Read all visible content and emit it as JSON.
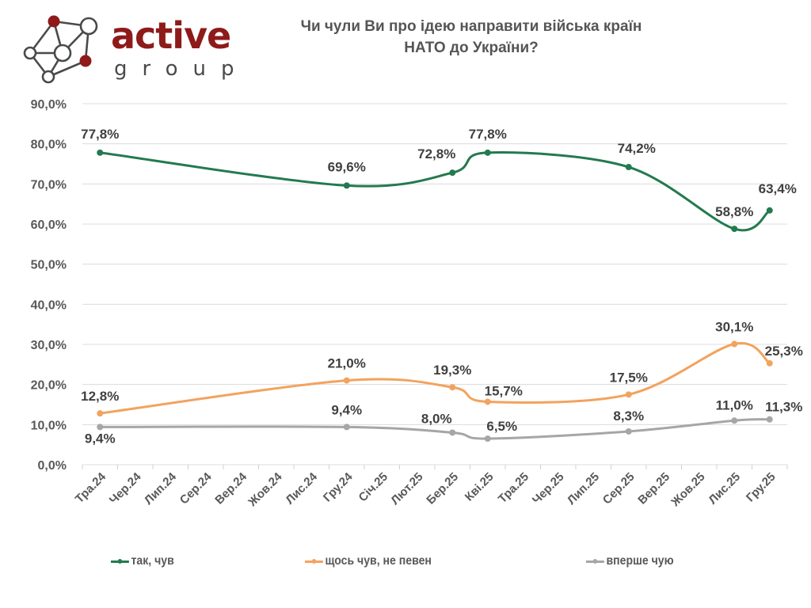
{
  "logo": {
    "word": "active",
    "sub": "group",
    "colors": {
      "primary": "#8e1a1a",
      "secondary": "#4a4a4a"
    }
  },
  "chart_data": {
    "type": "line",
    "title": "Чи чули Ви про ідею направити війська країн НАТО до України?",
    "title_lines": [
      "Чи чули Ви про ідею направити війська країн",
      "НАТО до України?"
    ],
    "xlabel": "",
    "ylabel": "",
    "categories": [
      "Тра.24",
      "Чер.24",
      "Лип.24",
      "Сер.24",
      "Вер.24",
      "Жов.24",
      "Лис.24",
      "Гру.24",
      "Січ.25",
      "Лют.25",
      "Бер.25",
      "Кві.25",
      "Тра.25",
      "Чер.25",
      "Лип.25",
      "Сер.25",
      "Вер.25",
      "Жов.25",
      "Лис.25",
      "Гру.25"
    ],
    "ylim": [
      0,
      90
    ],
    "yticks": [
      0,
      10,
      20,
      30,
      40,
      50,
      60,
      70,
      80,
      90
    ],
    "ytick_labels": [
      "0,0%",
      "10,0%",
      "20,0%",
      "30,0%",
      "40,0%",
      "50,0%",
      "60,0%",
      "70,0%",
      "80,0%",
      "90,0%"
    ],
    "grid": true,
    "smooth": true,
    "legend_position": "bottom",
    "series": [
      {
        "name": "так, чув",
        "color": "#237a4f",
        "points": [
          {
            "x": "Тра.24",
            "y": 77.8,
            "label": "77,8%"
          },
          {
            "x": "Гру.24",
            "y": 69.6,
            "label": "69,6%"
          },
          {
            "x": "Бер.25",
            "y": 72.8,
            "label": "72,8%"
          },
          {
            "x": "Кві.25",
            "y": 77.8,
            "label": "77,8%"
          },
          {
            "x": "Сер.25",
            "y": 74.2,
            "label": "74,2%"
          },
          {
            "x": "Лис.25",
            "y": 58.8,
            "label": "58,8%"
          },
          {
            "x": "Гру.25",
            "y": 63.4,
            "label": "63,4%"
          }
        ]
      },
      {
        "name": "щось чув, не певен",
        "color": "#f2a35e",
        "points": [
          {
            "x": "Тра.24",
            "y": 12.8,
            "label": "12,8%"
          },
          {
            "x": "Гру.24",
            "y": 21.0,
            "label": "21,0%"
          },
          {
            "x": "Бер.25",
            "y": 19.3,
            "label": "19,3%"
          },
          {
            "x": "Кві.25",
            "y": 15.7,
            "label": "15,7%"
          },
          {
            "x": "Сер.25",
            "y": 17.5,
            "label": "17,5%"
          },
          {
            "x": "Лис.25",
            "y": 30.1,
            "label": "30,1%"
          },
          {
            "x": "Гру.25",
            "y": 25.3,
            "label": "25,3%"
          }
        ]
      },
      {
        "name": "вперше чую",
        "color": "#a6a6a6",
        "points": [
          {
            "x": "Тра.24",
            "y": 9.4,
            "label": "9,4%"
          },
          {
            "x": "Гру.24",
            "y": 9.4,
            "label": "9,4%"
          },
          {
            "x": "Бер.25",
            "y": 8.0,
            "label": "8,0%"
          },
          {
            "x": "Кві.25",
            "y": 6.5,
            "label": "6,5%"
          },
          {
            "x": "Сер.25",
            "y": 8.3,
            "label": "8,3%"
          },
          {
            "x": "Лис.25",
            "y": 11.0,
            "label": "11,0%"
          },
          {
            "x": "Гру.25",
            "y": 11.3,
            "label": "11,3%"
          }
        ]
      }
    ]
  }
}
